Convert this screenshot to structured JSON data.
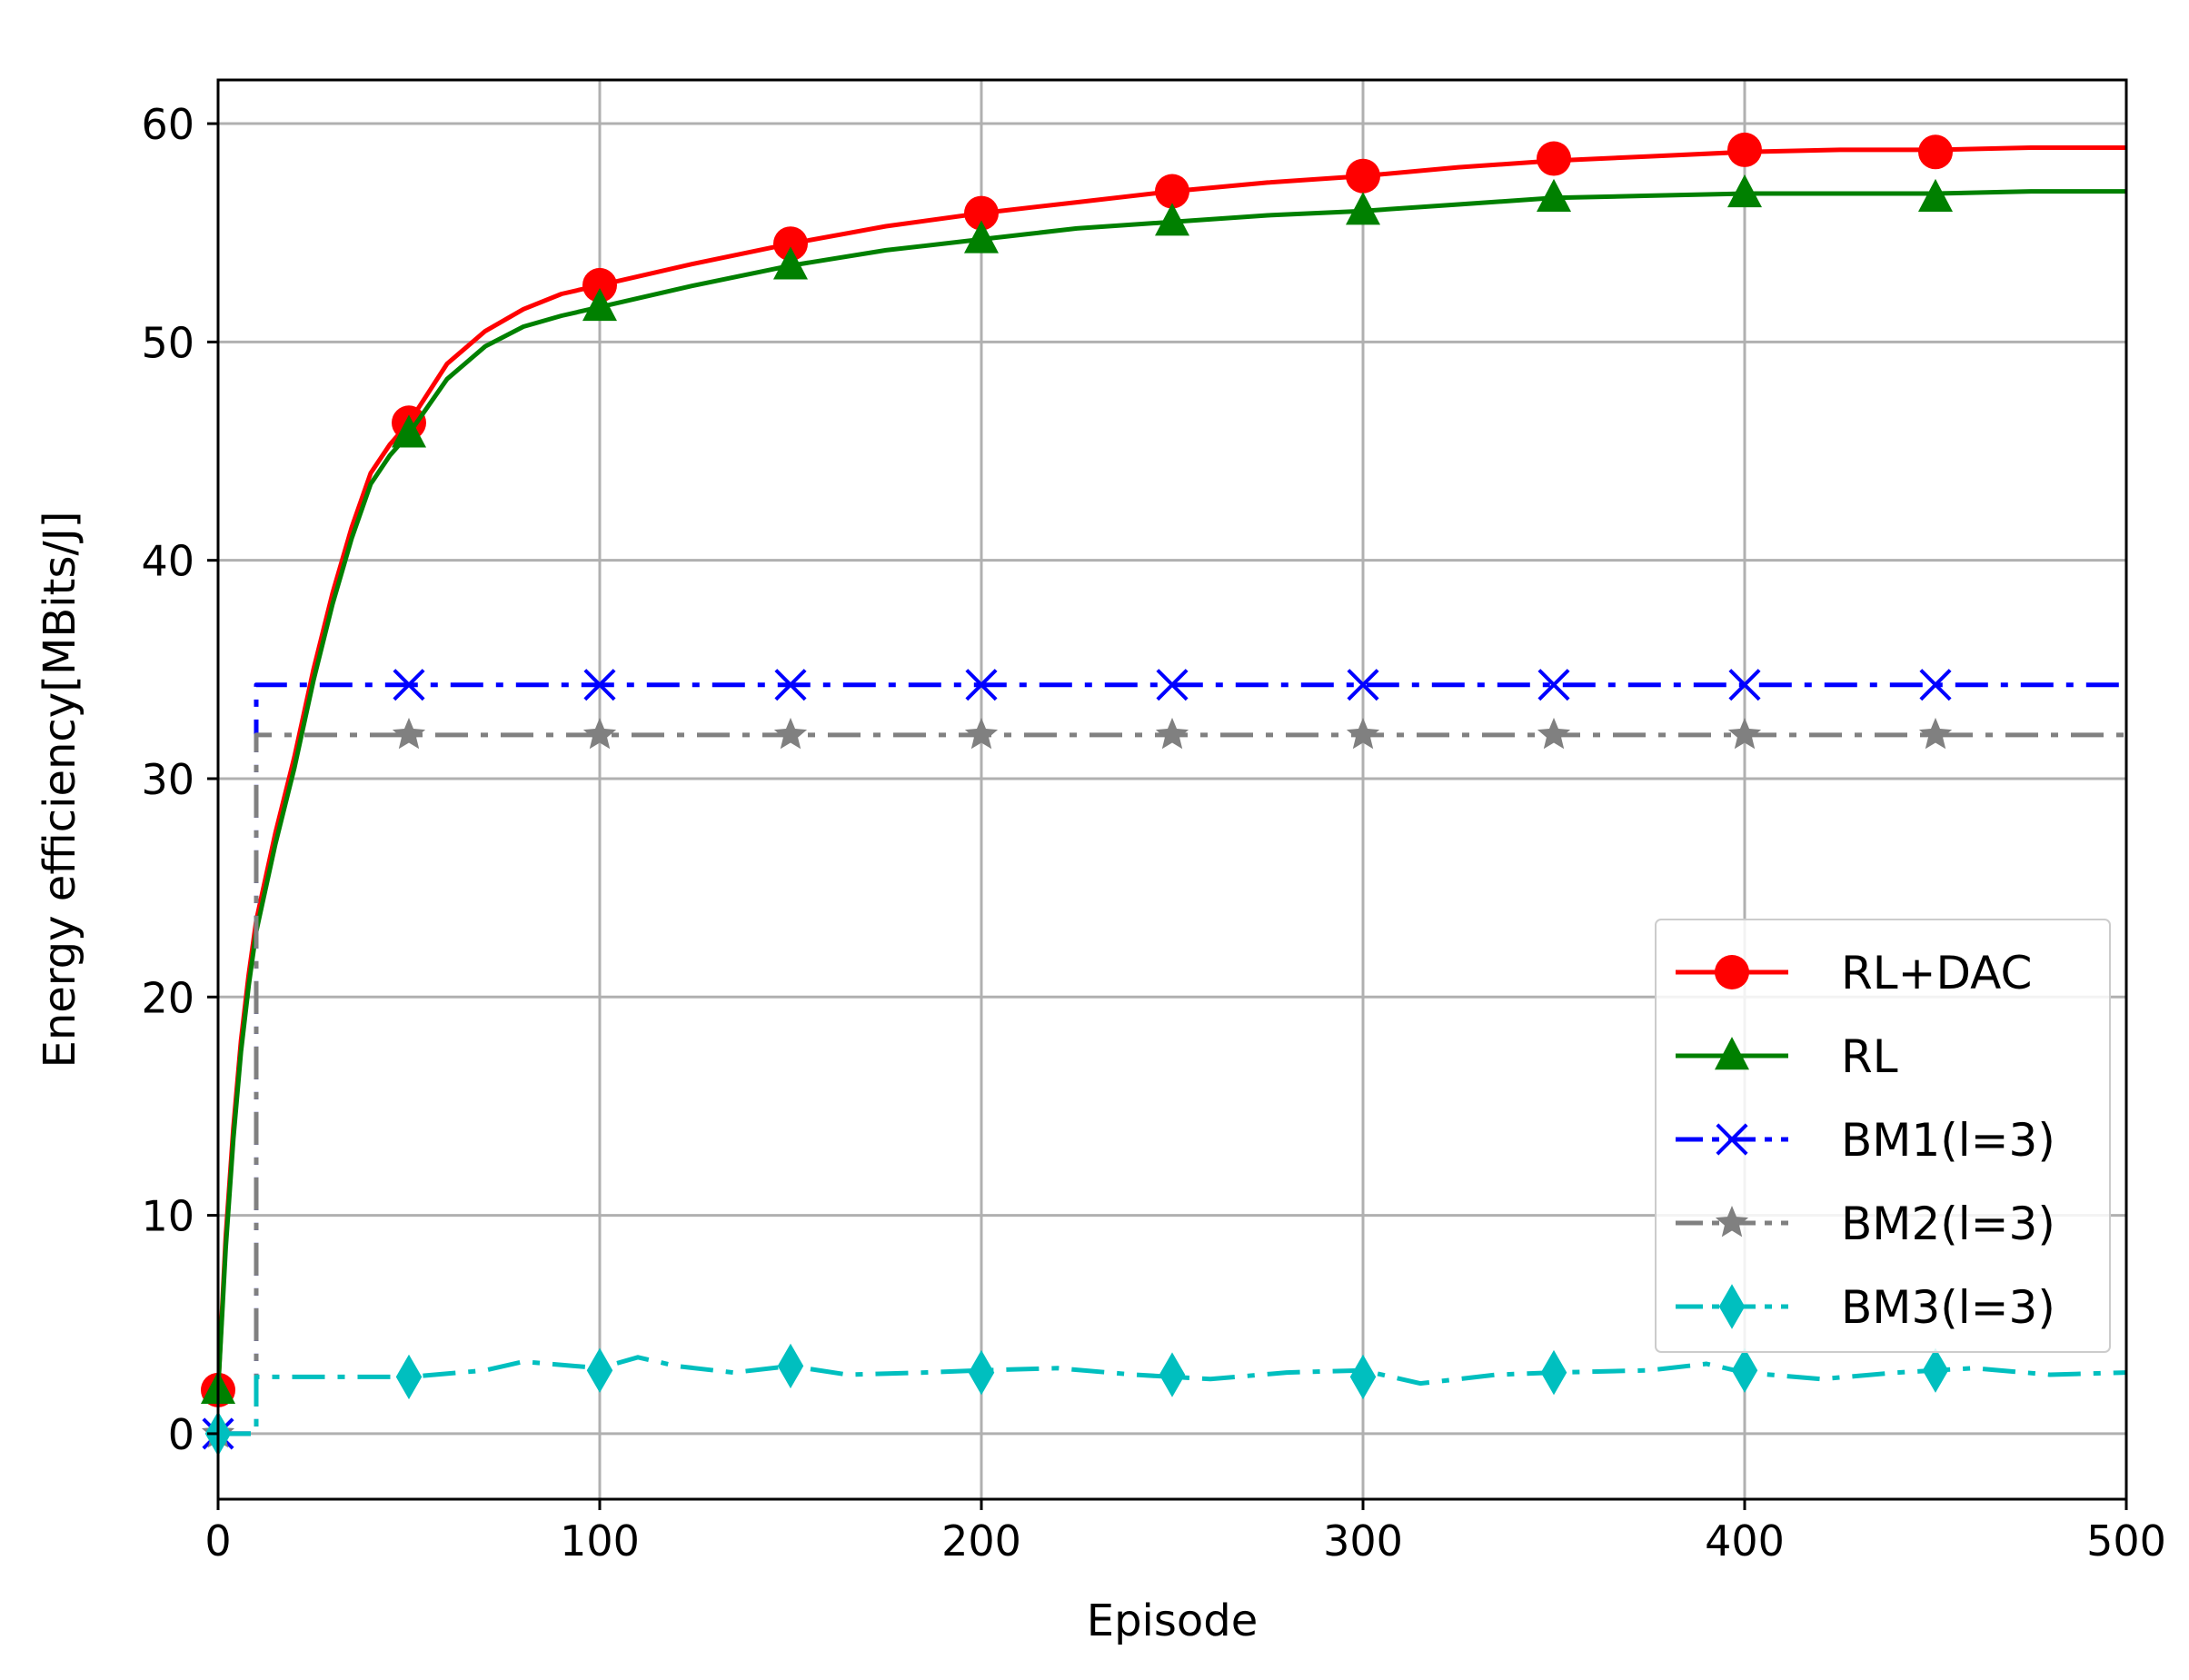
{
  "chart_data": {
    "type": "line",
    "title": "",
    "xlabel": "Episode",
    "ylabel": "Energy efficiency[MBits/J]",
    "xlim": [
      0,
      500
    ],
    "ylim": [
      -3,
      62
    ],
    "xticks": [
      0,
      100,
      200,
      300,
      400,
      500
    ],
    "yticks": [
      0,
      10,
      20,
      30,
      40,
      50,
      60
    ],
    "grid": true,
    "legend_position": "lower-right",
    "series": [
      {
        "name": "RL+DAC",
        "color": "#ff0000",
        "marker": "circle",
        "linestyle": "solid",
        "x": [
          0,
          2,
          4,
          6,
          8,
          10,
          15,
          20,
          25,
          30,
          35,
          40,
          45,
          50,
          60,
          70,
          80,
          90,
          100,
          125,
          150,
          175,
          200,
          225,
          250,
          275,
          300,
          325,
          350,
          375,
          400,
          425,
          450,
          475,
          500
        ],
        "y": [
          2.0,
          9.0,
          14.0,
          18.0,
          21.0,
          23.5,
          27.5,
          31.0,
          35.0,
          38.5,
          41.5,
          44.0,
          45.3,
          46.3,
          49.0,
          50.5,
          51.5,
          52.2,
          52.6,
          53.6,
          54.5,
          55.3,
          55.9,
          56.4,
          56.9,
          57.3,
          57.6,
          58.0,
          58.3,
          58.5,
          58.7,
          58.8,
          58.8,
          58.9,
          58.9
        ],
        "marker_x": [
          0,
          50,
          100,
          150,
          200,
          250,
          300,
          350,
          400,
          450
        ],
        "marker_y": [
          2.0,
          46.3,
          52.6,
          54.5,
          55.9,
          56.9,
          57.6,
          58.4,
          58.8,
          58.7
        ]
      },
      {
        "name": "RL",
        "color": "#008000",
        "marker": "triangle",
        "linestyle": "solid",
        "x": [
          0,
          2,
          4,
          6,
          8,
          10,
          15,
          20,
          25,
          30,
          35,
          40,
          45,
          50,
          60,
          70,
          80,
          90,
          100,
          125,
          150,
          175,
          200,
          225,
          250,
          275,
          300,
          325,
          350,
          375,
          400,
          425,
          450,
          475,
          500
        ],
        "y": [
          2.0,
          8.5,
          13.5,
          17.5,
          20.5,
          23.0,
          27.0,
          30.5,
          34.5,
          38.0,
          41.0,
          43.5,
          44.8,
          45.8,
          48.3,
          49.8,
          50.7,
          51.2,
          51.6,
          52.6,
          53.5,
          54.2,
          54.7,
          55.2,
          55.5,
          55.8,
          56.0,
          56.3,
          56.6,
          56.7,
          56.8,
          56.8,
          56.8,
          56.9,
          56.9
        ],
        "marker_x": [
          0,
          50,
          100,
          150,
          200,
          250,
          300,
          350,
          400,
          450
        ],
        "marker_y": [
          2.0,
          45.8,
          51.6,
          53.5,
          54.7,
          55.5,
          56.0,
          56.6,
          56.8,
          56.6
        ]
      },
      {
        "name": "BM1(l=3)",
        "color": "#0000ff",
        "marker": "x",
        "linestyle": "dashdot",
        "x": [
          0,
          10,
          10,
          500
        ],
        "y": [
          0,
          0,
          34.3,
          34.3
        ],
        "marker_x": [
          0,
          50,
          100,
          150,
          200,
          250,
          300,
          350,
          400,
          450
        ],
        "marker_y": [
          0,
          34.3,
          34.3,
          34.3,
          34.3,
          34.3,
          34.3,
          34.3,
          34.3,
          34.3
        ]
      },
      {
        "name": "BM2(l=3)",
        "color": "#808080",
        "marker": "star",
        "linestyle": "dashdot",
        "x": [
          0,
          10,
          10,
          500
        ],
        "y": [
          0,
          0,
          32.0,
          32.0
        ],
        "marker_x": [
          0,
          50,
          100,
          150,
          200,
          250,
          300,
          350,
          400,
          450
        ],
        "marker_y": [
          0,
          32.0,
          32.0,
          32.0,
          32.0,
          32.0,
          32.0,
          32.0,
          32.0,
          32.0
        ]
      },
      {
        "name": "BM3(l=3)",
        "color": "#00bfbf",
        "marker": "diamond",
        "linestyle": "dashdot",
        "x": [
          0,
          10,
          10,
          30,
          50,
          70,
          80,
          100,
          110,
          120,
          135,
          150,
          165,
          185,
          200,
          220,
          240,
          260,
          280,
          300,
          315,
          335,
          350,
          375,
          390,
          400,
          420,
          440,
          460,
          480,
          500
        ],
        "y": [
          0,
          0,
          2.6,
          2.6,
          2.6,
          2.9,
          3.3,
          3.0,
          3.5,
          3.1,
          2.8,
          3.1,
          2.7,
          2.8,
          2.9,
          3.0,
          2.7,
          2.5,
          2.8,
          2.9,
          2.3,
          2.7,
          2.8,
          2.9,
          3.2,
          2.8,
          2.5,
          2.8,
          3.0,
          2.7,
          2.8
        ],
        "marker_x": [
          0,
          50,
          100,
          150,
          200,
          250,
          300,
          350,
          400,
          450
        ],
        "marker_y": [
          0,
          2.6,
          2.9,
          3.1,
          2.8,
          2.7,
          2.6,
          2.8,
          2.9,
          2.9
        ]
      }
    ]
  }
}
